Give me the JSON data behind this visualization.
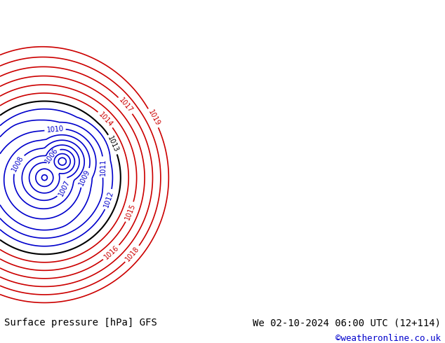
{
  "title_left": "Surface pressure [hPa] GFS",
  "title_right": "We 02-10-2024 06:00 UTC (12+114)",
  "credit": "©weatheronline.co.uk",
  "bg_color": "#c8e6c8",
  "land_color": "#b8e0a0",
  "sea_color": "#d0d8d0",
  "text_color_bottom": "#000000",
  "credit_color": "#0000cc",
  "blue_contour_color": "#0000cc",
  "red_contour_color": "#cc0000",
  "black_contour_color": "#000000",
  "figsize": [
    6.34,
    4.9
  ],
  "dpi": 100
}
